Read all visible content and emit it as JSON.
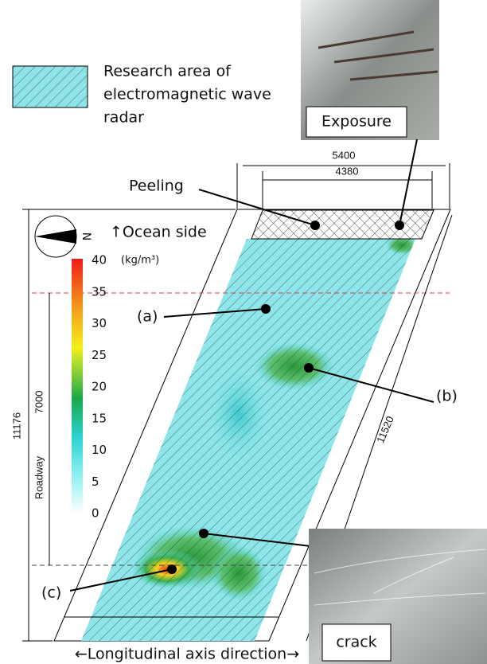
{
  "legend": {
    "lines": [
      "Research area of",
      "electromagnetic wave",
      "radar"
    ]
  },
  "photos": {
    "exposure": "Exposure",
    "crack": "crack"
  },
  "dimensions": {
    "top_outer": "5400",
    "top_inner": "4380",
    "left": "11176",
    "roadway_label": "Roadway",
    "roadway": "7000",
    "diagonal": "11520"
  },
  "labels": {
    "peeling": "Peeling",
    "ocean_side": "↑Ocean side",
    "north": "N",
    "a": "(a)",
    "b": "(b)",
    "c": "(c)",
    "longitudinal": "←Longitudinal axis direction→"
  },
  "colorbar": {
    "unit": "(kg/m³)",
    "ticks": [
      40,
      35,
      30,
      25,
      20,
      15,
      10,
      5,
      0
    ]
  }
}
